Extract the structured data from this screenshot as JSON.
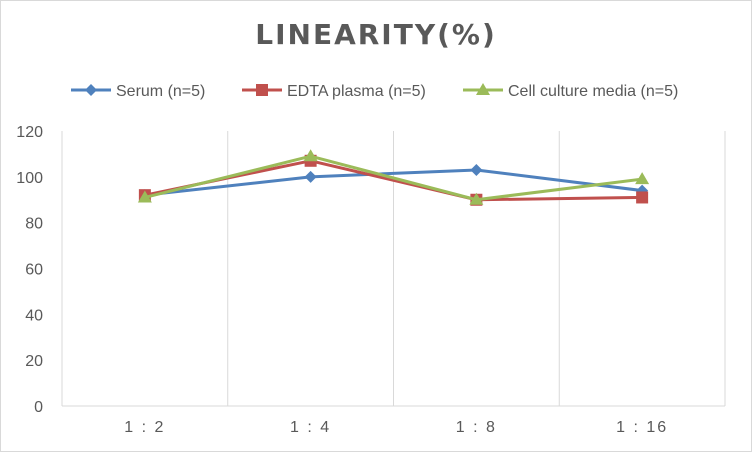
{
  "chart_data": {
    "type": "line",
    "title": "LINEARITY(%)",
    "xlabel": "",
    "ylabel": "",
    "categories": [
      "1:2",
      "1:4",
      "1:8",
      "1:16"
    ],
    "ylim": [
      0,
      120
    ],
    "yticks": [
      0,
      20,
      40,
      60,
      80,
      100,
      120
    ],
    "grid": "vertical",
    "legend_position": "top",
    "series": [
      {
        "name": "Serum (n=5)",
        "values": [
          92,
          100,
          103,
          94
        ],
        "color": "#4f81bd",
        "marker": "diamond"
      },
      {
        "name": "EDTA plasma (n=5)",
        "values": [
          92,
          107,
          90,
          91
        ],
        "color": "#c0504d",
        "marker": "square"
      },
      {
        "name": "Cell culture media (n=5)",
        "values": [
          91,
          109,
          90,
          99
        ],
        "color": "#9bbb59",
        "marker": "triangle"
      }
    ]
  }
}
